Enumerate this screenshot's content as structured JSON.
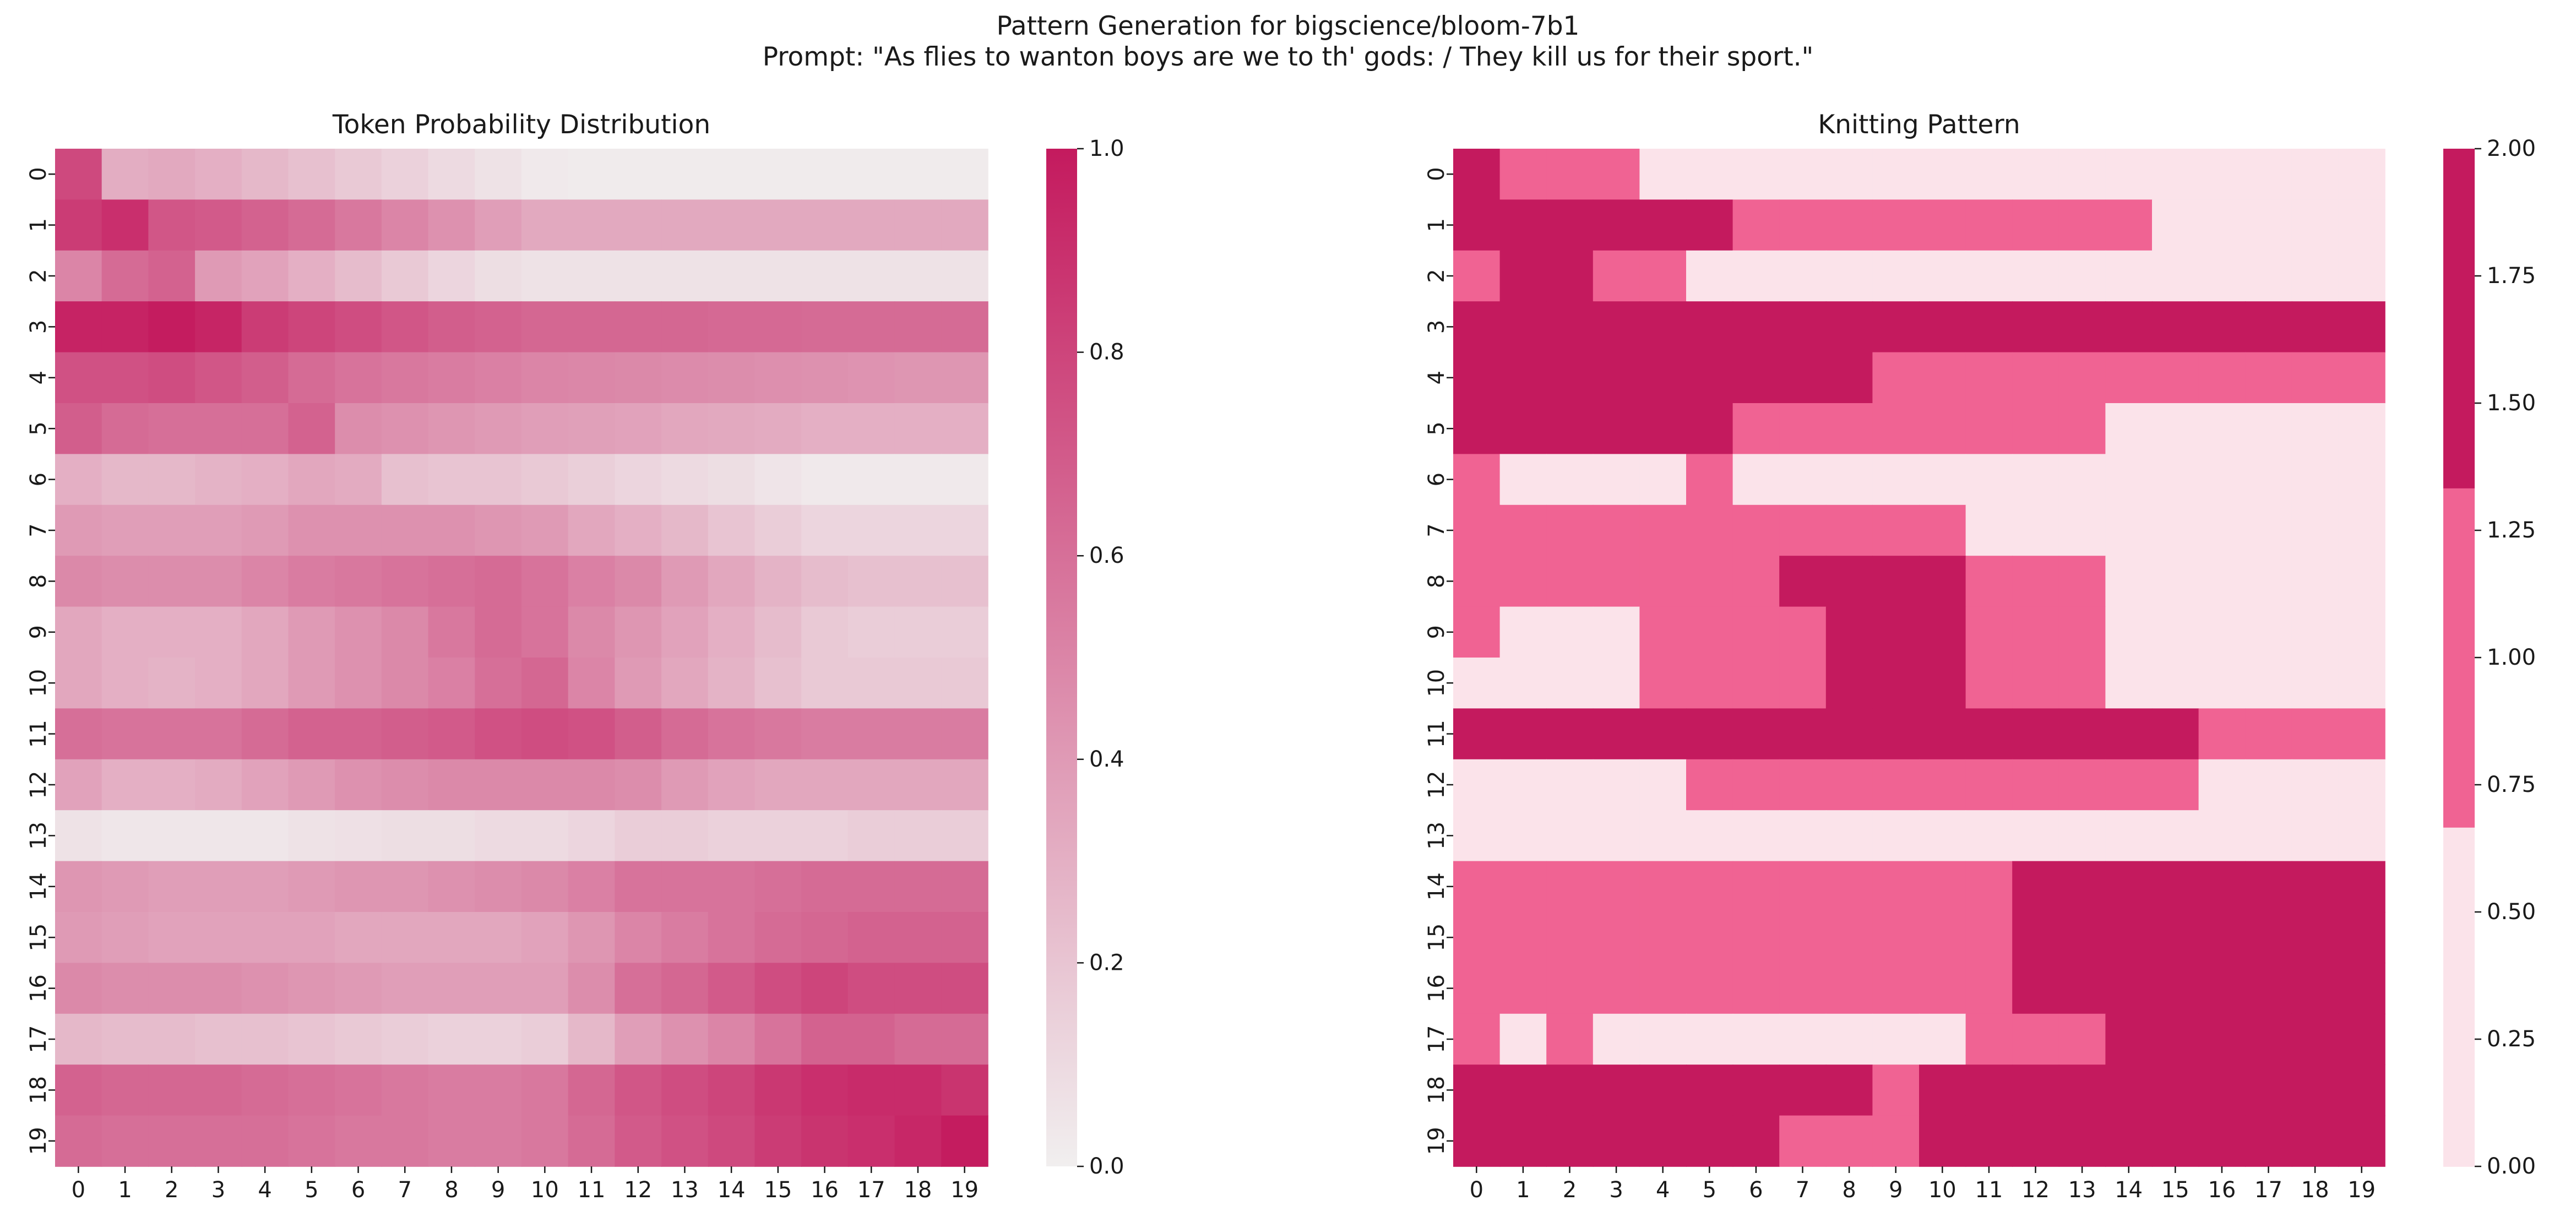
{
  "figure": {
    "title": "Pattern Generation for bigscience/bloom-7b1",
    "subtitle": "Prompt: \"As flies to wanton boys are we to th' gods: / They kill us for their sport.\""
  },
  "colors": {
    "low": "#f1efef",
    "high": "#c41a5e",
    "knit_levels": [
      "#fbe3ea",
      "#f06393",
      "#c41a5e"
    ]
  },
  "chart_data": [
    {
      "type": "heatmap",
      "title": "Token Probability Distribution",
      "rows": [
        "0",
        "1",
        "2",
        "3",
        "4",
        "5",
        "6",
        "7",
        "8",
        "9",
        "10",
        "11",
        "12",
        "13",
        "14",
        "15",
        "16",
        "17",
        "18",
        "19"
      ],
      "cols": [
        "0",
        "1",
        "2",
        "3",
        "4",
        "5",
        "6",
        "7",
        "8",
        "9",
        "10",
        "11",
        "12",
        "13",
        "14",
        "15",
        "16",
        "17",
        "18",
        "19"
      ],
      "colorbar": {
        "range": [
          0,
          1
        ],
        "ticks": [
          "0.0",
          "0.2",
          "0.4",
          "0.6",
          "0.8",
          "1.0"
        ],
        "tick_values": [
          0,
          0.2,
          0.4,
          0.6,
          0.8,
          1.0
        ]
      },
      "values": [
        [
          0.78,
          0.31,
          0.33,
          0.3,
          0.26,
          0.22,
          0.18,
          0.14,
          0.1,
          0.06,
          0.03,
          0.02,
          0.02,
          0.02,
          0.02,
          0.02,
          0.02,
          0.02,
          0.02,
          0.02
        ],
        [
          0.84,
          0.9,
          0.72,
          0.7,
          0.66,
          0.62,
          0.56,
          0.5,
          0.44,
          0.38,
          0.33,
          0.33,
          0.33,
          0.33,
          0.33,
          0.33,
          0.33,
          0.33,
          0.33,
          0.33
        ],
        [
          0.5,
          0.62,
          0.66,
          0.4,
          0.36,
          0.3,
          0.24,
          0.18,
          0.12,
          0.08,
          0.06,
          0.06,
          0.06,
          0.06,
          0.06,
          0.06,
          0.06,
          0.06,
          0.06,
          0.06
        ],
        [
          0.96,
          0.96,
          0.99,
          0.95,
          0.84,
          0.8,
          0.76,
          0.72,
          0.68,
          0.66,
          0.64,
          0.64,
          0.64,
          0.64,
          0.63,
          0.63,
          0.62,
          0.62,
          0.62,
          0.62
        ],
        [
          0.74,
          0.74,
          0.76,
          0.72,
          0.68,
          0.62,
          0.58,
          0.56,
          0.54,
          0.52,
          0.5,
          0.49,
          0.48,
          0.47,
          0.46,
          0.45,
          0.44,
          0.43,
          0.42,
          0.42
        ],
        [
          0.68,
          0.62,
          0.6,
          0.6,
          0.6,
          0.66,
          0.46,
          0.44,
          0.42,
          0.4,
          0.38,
          0.37,
          0.36,
          0.34,
          0.33,
          0.32,
          0.3,
          0.3,
          0.3,
          0.3
        ],
        [
          0.3,
          0.26,
          0.26,
          0.28,
          0.3,
          0.34,
          0.32,
          0.22,
          0.2,
          0.2,
          0.18,
          0.15,
          0.12,
          0.1,
          0.08,
          0.05,
          0.03,
          0.03,
          0.03,
          0.03
        ],
        [
          0.4,
          0.38,
          0.38,
          0.38,
          0.4,
          0.44,
          0.44,
          0.44,
          0.44,
          0.42,
          0.4,
          0.34,
          0.3,
          0.26,
          0.2,
          0.16,
          0.12,
          0.12,
          0.12,
          0.12
        ],
        [
          0.48,
          0.46,
          0.46,
          0.46,
          0.5,
          0.54,
          0.56,
          0.58,
          0.6,
          0.62,
          0.58,
          0.52,
          0.48,
          0.4,
          0.34,
          0.28,
          0.24,
          0.22,
          0.22,
          0.22
        ],
        [
          0.34,
          0.3,
          0.3,
          0.3,
          0.34,
          0.4,
          0.44,
          0.48,
          0.56,
          0.62,
          0.58,
          0.48,
          0.42,
          0.36,
          0.3,
          0.24,
          0.18,
          0.16,
          0.16,
          0.16
        ],
        [
          0.34,
          0.3,
          0.28,
          0.3,
          0.34,
          0.4,
          0.44,
          0.48,
          0.52,
          0.6,
          0.64,
          0.5,
          0.4,
          0.34,
          0.28,
          0.22,
          0.18,
          0.18,
          0.18,
          0.18
        ],
        [
          0.6,
          0.58,
          0.58,
          0.58,
          0.62,
          0.66,
          0.66,
          0.68,
          0.7,
          0.74,
          0.76,
          0.74,
          0.68,
          0.62,
          0.58,
          0.56,
          0.54,
          0.54,
          0.54,
          0.54
        ],
        [
          0.36,
          0.3,
          0.3,
          0.32,
          0.36,
          0.4,
          0.44,
          0.46,
          0.48,
          0.48,
          0.48,
          0.48,
          0.46,
          0.4,
          0.36,
          0.34,
          0.34,
          0.34,
          0.34,
          0.34
        ],
        [
          0.06,
          0.04,
          0.04,
          0.04,
          0.04,
          0.06,
          0.07,
          0.08,
          0.08,
          0.1,
          0.1,
          0.12,
          0.16,
          0.16,
          0.14,
          0.14,
          0.14,
          0.16,
          0.16,
          0.16
        ],
        [
          0.42,
          0.4,
          0.38,
          0.38,
          0.38,
          0.4,
          0.42,
          0.42,
          0.44,
          0.46,
          0.48,
          0.52,
          0.58,
          0.58,
          0.58,
          0.6,
          0.62,
          0.62,
          0.62,
          0.62
        ],
        [
          0.4,
          0.38,
          0.36,
          0.36,
          0.36,
          0.36,
          0.34,
          0.34,
          0.34,
          0.34,
          0.36,
          0.42,
          0.5,
          0.54,
          0.58,
          0.62,
          0.64,
          0.66,
          0.66,
          0.66
        ],
        [
          0.48,
          0.46,
          0.46,
          0.46,
          0.44,
          0.42,
          0.4,
          0.38,
          0.38,
          0.38,
          0.38,
          0.46,
          0.6,
          0.64,
          0.7,
          0.76,
          0.8,
          0.76,
          0.76,
          0.76
        ],
        [
          0.26,
          0.24,
          0.24,
          0.22,
          0.22,
          0.2,
          0.18,
          0.16,
          0.14,
          0.14,
          0.16,
          0.26,
          0.38,
          0.44,
          0.5,
          0.58,
          0.66,
          0.66,
          0.62,
          0.62
        ],
        [
          0.66,
          0.64,
          0.64,
          0.64,
          0.62,
          0.6,
          0.58,
          0.56,
          0.54,
          0.54,
          0.56,
          0.64,
          0.72,
          0.76,
          0.8,
          0.86,
          0.9,
          0.92,
          0.92,
          0.88
        ],
        [
          0.62,
          0.6,
          0.6,
          0.6,
          0.6,
          0.58,
          0.56,
          0.56,
          0.54,
          0.54,
          0.56,
          0.62,
          0.7,
          0.74,
          0.78,
          0.84,
          0.88,
          0.9,
          0.94,
          0.99
        ]
      ]
    },
    {
      "type": "heatmap",
      "title": "Knitting Pattern",
      "rows": [
        "0",
        "1",
        "2",
        "3",
        "4",
        "5",
        "6",
        "7",
        "8",
        "9",
        "10",
        "11",
        "12",
        "13",
        "14",
        "15",
        "16",
        "17",
        "18",
        "19"
      ],
      "cols": [
        "0",
        "1",
        "2",
        "3",
        "4",
        "5",
        "6",
        "7",
        "8",
        "9",
        "10",
        "11",
        "12",
        "13",
        "14",
        "15",
        "16",
        "17",
        "18",
        "19"
      ],
      "colorbar": {
        "range": [
          0,
          2
        ],
        "ticks": [
          "0.00",
          "0.25",
          "0.50",
          "0.75",
          "1.00",
          "1.25",
          "1.50",
          "1.75",
          "2.00"
        ],
        "tick_values": [
          0,
          0.25,
          0.5,
          0.75,
          1.0,
          1.25,
          1.5,
          1.75,
          2.0
        ]
      },
      "values": [
        [
          2,
          1,
          1,
          1,
          0,
          0,
          0,
          0,
          0,
          0,
          0,
          0,
          0,
          0,
          0,
          0,
          0,
          0,
          0,
          0
        ],
        [
          2,
          2,
          2,
          2,
          2,
          2,
          1,
          1,
          1,
          1,
          1,
          1,
          1,
          1,
          1,
          0,
          0,
          0,
          0,
          0
        ],
        [
          1,
          2,
          2,
          1,
          1,
          0,
          0,
          0,
          0,
          0,
          0,
          0,
          0,
          0,
          0,
          0,
          0,
          0,
          0,
          0
        ],
        [
          2,
          2,
          2,
          2,
          2,
          2,
          2,
          2,
          2,
          2,
          2,
          2,
          2,
          2,
          2,
          2,
          2,
          2,
          2,
          2
        ],
        [
          2,
          2,
          2,
          2,
          2,
          2,
          2,
          2,
          2,
          1,
          1,
          1,
          1,
          1,
          1,
          1,
          1,
          1,
          1,
          1
        ],
        [
          2,
          2,
          2,
          2,
          2,
          2,
          1,
          1,
          1,
          1,
          1,
          1,
          1,
          1,
          0,
          0,
          0,
          0,
          0,
          0
        ],
        [
          1,
          0,
          0,
          0,
          0,
          1,
          0,
          0,
          0,
          0,
          0,
          0,
          0,
          0,
          0,
          0,
          0,
          0,
          0,
          0
        ],
        [
          1,
          1,
          1,
          1,
          1,
          1,
          1,
          1,
          1,
          1,
          1,
          0,
          0,
          0,
          0,
          0,
          0,
          0,
          0,
          0
        ],
        [
          1,
          1,
          1,
          1,
          1,
          1,
          1,
          2,
          2,
          2,
          2,
          1,
          1,
          1,
          0,
          0,
          0,
          0,
          0,
          0
        ],
        [
          1,
          0,
          0,
          0,
          1,
          1,
          1,
          1,
          2,
          2,
          2,
          1,
          1,
          1,
          0,
          0,
          0,
          0,
          0,
          0
        ],
        [
          0,
          0,
          0,
          0,
          1,
          1,
          1,
          1,
          2,
          2,
          2,
          1,
          1,
          1,
          0,
          0,
          0,
          0,
          0,
          0
        ],
        [
          2,
          2,
          2,
          2,
          2,
          2,
          2,
          2,
          2,
          2,
          2,
          2,
          2,
          2,
          2,
          2,
          1,
          1,
          1,
          1
        ],
        [
          0,
          0,
          0,
          0,
          0,
          1,
          1,
          1,
          1,
          1,
          1,
          1,
          1,
          1,
          1,
          1,
          0,
          0,
          0,
          0
        ],
        [
          0,
          0,
          0,
          0,
          0,
          0,
          0,
          0,
          0,
          0,
          0,
          0,
          0,
          0,
          0,
          0,
          0,
          0,
          0,
          0
        ],
        [
          1,
          1,
          1,
          1,
          1,
          1,
          1,
          1,
          1,
          1,
          1,
          1,
          2,
          2,
          2,
          2,
          2,
          2,
          2,
          2
        ],
        [
          1,
          1,
          1,
          1,
          1,
          1,
          1,
          1,
          1,
          1,
          1,
          1,
          2,
          2,
          2,
          2,
          2,
          2,
          2,
          2
        ],
        [
          1,
          1,
          1,
          1,
          1,
          1,
          1,
          1,
          1,
          1,
          1,
          1,
          2,
          2,
          2,
          2,
          2,
          2,
          2,
          2
        ],
        [
          1,
          0,
          1,
          0,
          0,
          0,
          0,
          0,
          0,
          0,
          0,
          1,
          1,
          1,
          2,
          2,
          2,
          2,
          2,
          2
        ],
        [
          2,
          2,
          2,
          2,
          2,
          2,
          2,
          2,
          2,
          1,
          2,
          2,
          2,
          2,
          2,
          2,
          2,
          2,
          2,
          2
        ],
        [
          2,
          2,
          2,
          2,
          2,
          2,
          2,
          1,
          1,
          1,
          2,
          2,
          2,
          2,
          2,
          2,
          2,
          2,
          2,
          2
        ]
      ]
    }
  ]
}
